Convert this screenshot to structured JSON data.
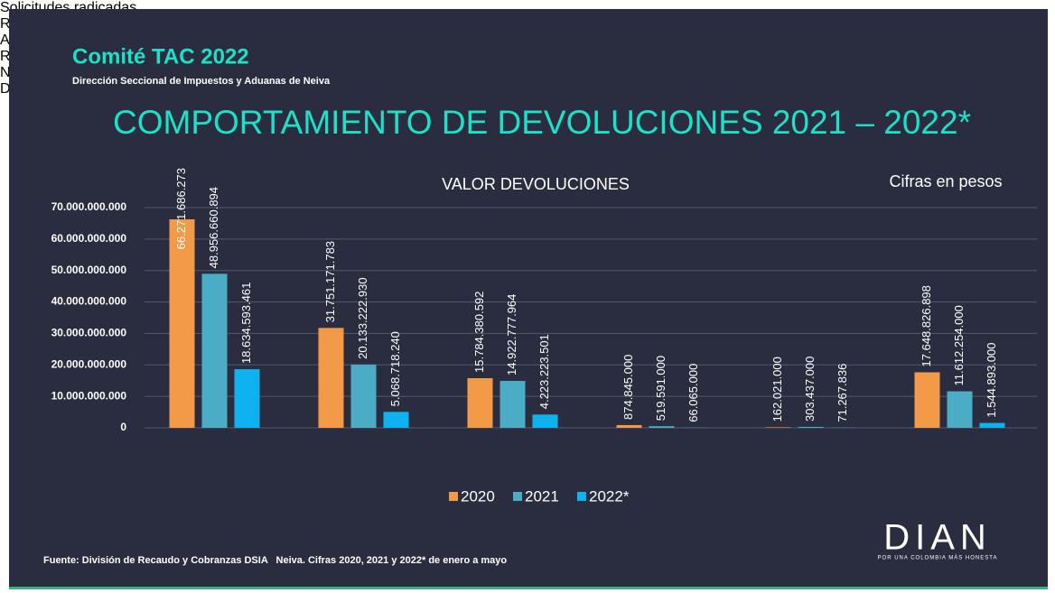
{
  "header": {
    "title": "Comité TAC 2022",
    "subtitle": "Dirección Seccional de Impuestos y Aduanas de Neiva",
    "heading": "COMPORTAMIENTO DE DEVOLUCIONES 2021 – 2022*"
  },
  "chart_data": {
    "type": "bar",
    "title": "VALOR DEVOLUCIONES",
    "annotation": "Cifras en pesos",
    "categories": [
      "Solicitudes radicadas",
      "Resoluciones de devolución y/o compensación",
      "Autos inadmisorios",
      "Rechazos",
      "Negación por Improcedente",
      "Desistimientos"
    ],
    "series": [
      {
        "name": "2020",
        "color": "#f39a48",
        "values": [
          66271686273,
          31751171783,
          15784380592,
          874845000,
          162021000,
          17648826898
        ],
        "value_labels": [
          "66.271.686.273",
          "31.751.171.783",
          "15.784.380.592",
          "874.845.000",
          "162.021.000",
          "17.648.826.898"
        ]
      },
      {
        "name": "2021",
        "color": "#4bacc6",
        "values": [
          48956660894,
          20133222930,
          14922777964,
          519591000,
          303437000,
          11612254000
        ],
        "value_labels": [
          "48.956.660.894",
          "20.133.222.930",
          "14.922.777.964",
          "519.591.000",
          "303.437.000",
          "11.612.254.000"
        ]
      },
      {
        "name": "2022*",
        "color": "#0eb2ef",
        "values": [
          18634593461,
          5068718240,
          4223223501,
          66065000,
          71267836,
          1544893000
        ],
        "value_labels": [
          "18.634.593.461",
          "5.068.718.240",
          "4.223.223.501",
          "66.065.000",
          "71.267.836",
          "1.544.893.000"
        ]
      }
    ],
    "ylim": [
      0,
      70000000000
    ],
    "yticks": [
      0,
      {
        "value": 10000000000,
        "label": "10.000.000.000"
      },
      {
        "value": 20000000000,
        "label": "20.000.000.000"
      },
      {
        "value": 30000000000,
        "label": "30.000.000.000"
      },
      {
        "value": 40000000000,
        "label": "40.000.000.000"
      },
      {
        "value": 50000000000,
        "label": "50.000.000.000"
      },
      {
        "value": 60000000000,
        "label": "60.000.000.000"
      },
      {
        "value": 70000000000,
        "label": "70.000.000.000"
      }
    ],
    "grid": true,
    "legend": "bottom"
  },
  "footer": {
    "source": "Fuente: División de Recaudo y Cobranzas DSIA   Neiva. Cifras 2020, 2021 y 2022* de enero a mayo",
    "logo": "DIAN",
    "tagline": "POR UNA COLOMBIA MÁS HONESTA"
  }
}
